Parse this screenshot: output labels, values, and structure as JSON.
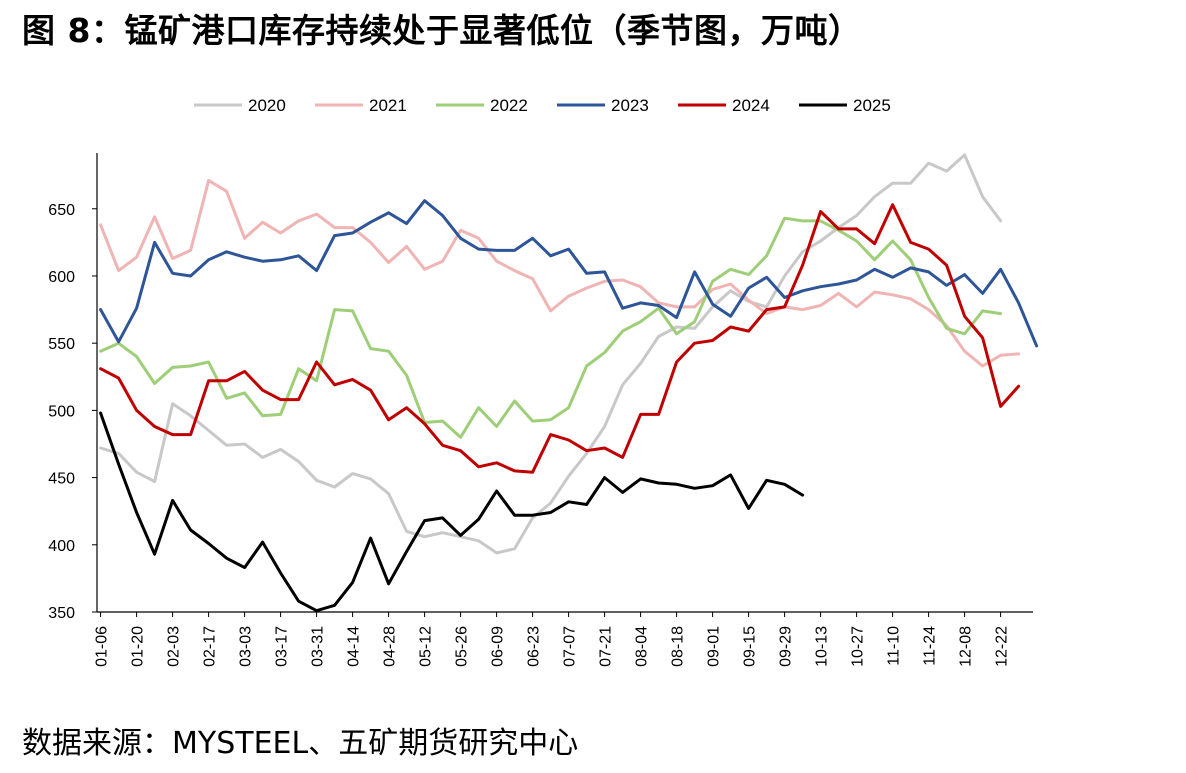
{
  "title": "图 8：锰矿港口库存持续处于显著低位（季节图，万吨）",
  "source": "数据来源：MYSTEEL、五矿期货研究中心",
  "chart_data": {
    "type": "line",
    "title": "图 8：锰矿港口库存持续处于显著低位（季节图，万吨）",
    "xlabel": "",
    "ylabel": "",
    "ylim": [
      350,
      690
    ],
    "yticks": [
      350,
      400,
      450,
      500,
      550,
      600,
      650
    ],
    "legend_position": "top-center",
    "grid": false,
    "x_tick_labels": [
      "01-06",
      "01-20",
      "02-03",
      "02-17",
      "03-03",
      "03-17",
      "03-31",
      "04-14",
      "04-28",
      "05-12",
      "05-26",
      "06-09",
      "06-23",
      "07-07",
      "07-21",
      "08-04",
      "08-18",
      "09-01",
      "09-15",
      "09-29",
      "10-13",
      "10-27",
      "11-10",
      "11-24",
      "12-08",
      "12-22"
    ],
    "x_note": "weekly observations; week index 0 = 01-06, index 2 = 01-20, ... index 50 = 12-22",
    "series": [
      {
        "name": "2020",
        "color": "#c8c8c8",
        "values": [
          472,
          468,
          454,
          447,
          505,
          496,
          485,
          474,
          475,
          465,
          471,
          462,
          448,
          443,
          453,
          449,
          438,
          410,
          406,
          409,
          406,
          403,
          394,
          397,
          420,
          431,
          451,
          468,
          488,
          519,
          535,
          555,
          562,
          561,
          577,
          589,
          581,
          577,
          600,
          618,
          626,
          636,
          645,
          659,
          669,
          669,
          684,
          678,
          690,
          659,
          641
        ]
      },
      {
        "name": "2021",
        "color": "#f0b4b4",
        "values": [
          638,
          604,
          614,
          644,
          613,
          619,
          671,
          663,
          628,
          640,
          632,
          641,
          646,
          636,
          636,
          625,
          610,
          622,
          605,
          611,
          634,
          628,
          611,
          604,
          598,
          574,
          585,
          591,
          596,
          597,
          592,
          580,
          577,
          577,
          590,
          594,
          582,
          572,
          577,
          575,
          578,
          587,
          577,
          588,
          586,
          583,
          575,
          563,
          544,
          533,
          541,
          542
        ]
      },
      {
        "name": "2022",
        "color": "#9fce78",
        "values": [
          544,
          550,
          540,
          520,
          532,
          533,
          536,
          509,
          513,
          496,
          497,
          531,
          522,
          575,
          574,
          546,
          544,
          526,
          491,
          492,
          480,
          502,
          488,
          507,
          492,
          493,
          502,
          533,
          543,
          559,
          566,
          576,
          557,
          566,
          596,
          605,
          601,
          615,
          643,
          641,
          641,
          634,
          626,
          612,
          626,
          612,
          584,
          561,
          557,
          574,
          572
        ]
      },
      {
        "name": "2023",
        "color": "#2e5598",
        "values": [
          575,
          551,
          576,
          625,
          602,
          600,
          612,
          618,
          614,
          611,
          612,
          615,
          604,
          630,
          632,
          640,
          647,
          639,
          656,
          645,
          628,
          620,
          619,
          619,
          628,
          615,
          620,
          602,
          603,
          576,
          580,
          578,
          569,
          603,
          579,
          570,
          591,
          599,
          584,
          589,
          592,
          594,
          597,
          605,
          599,
          606,
          603,
          593,
          601,
          587,
          605,
          580,
          548
        ]
      },
      {
        "name": "2024",
        "color": "#c00000",
        "values": [
          531,
          524,
          500,
          488,
          482,
          482,
          522,
          522,
          529,
          515,
          508,
          508,
          536,
          519,
          523,
          515,
          493,
          502,
          490,
          474,
          470,
          458,
          461,
          455,
          454,
          482,
          478,
          470,
          472,
          465,
          497,
          497,
          536,
          550,
          552,
          562,
          559,
          575,
          577,
          608,
          648,
          635,
          635,
          624,
          653,
          625,
          620,
          608,
          570,
          554,
          503,
          518
        ]
      },
      {
        "name": "2025",
        "color": "#000000",
        "values": [
          498,
          460,
          424,
          393,
          433,
          411,
          401,
          390,
          383,
          402,
          379,
          358,
          351,
          355,
          372,
          405,
          371,
          395,
          418,
          420,
          407,
          419,
          440,
          422,
          422,
          424,
          432,
          430,
          450,
          439,
          449,
          446,
          445,
          442,
          444,
          452,
          427,
          448,
          445,
          437
        ]
      }
    ]
  }
}
